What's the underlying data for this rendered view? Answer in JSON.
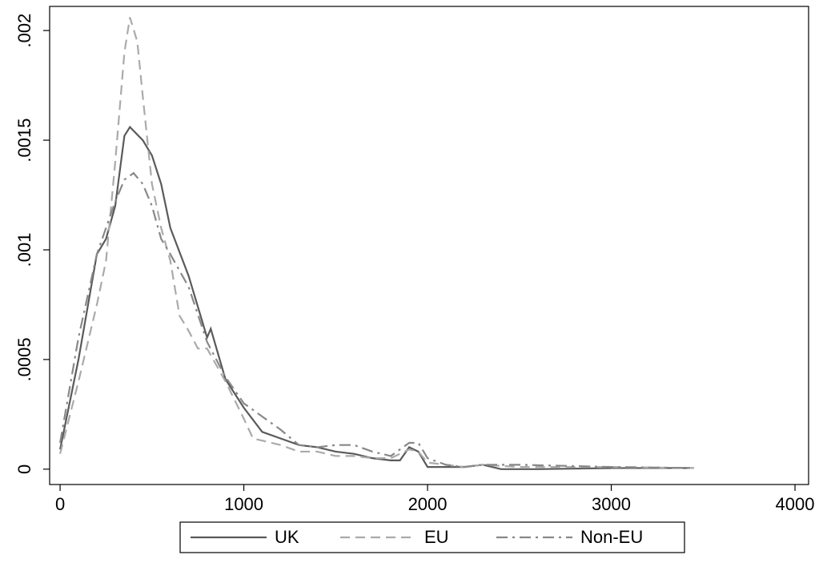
{
  "chart_data": {
    "type": "line",
    "xlim": [
      -57,
      4074
    ],
    "ylim": [
      -7e-05,
      0.00211
    ],
    "xticks": [
      0,
      1000,
      2000,
      3000,
      4000
    ],
    "yticks": [
      0,
      {
        "value": 0.0005,
        "label": ".0005"
      },
      {
        "value": 0.001,
        "label": ".001"
      },
      {
        "value": 0.0015,
        "label": ".0015"
      },
      {
        "value": 0.002,
        "label": ".002"
      }
    ],
    "grid": false,
    "legend": "bottom",
    "series": [
      {
        "name": "UK",
        "color": "#5a5a5a",
        "dash": "solid",
        "x": [
          0,
          100,
          200,
          250,
          300,
          350,
          380,
          450,
          500,
          550,
          600,
          700,
          800,
          820,
          900,
          1000,
          1100,
          1200,
          1300,
          1400,
          1500,
          1600,
          1700,
          1800,
          1850,
          1900,
          1950,
          2000,
          2100,
          2200,
          2300,
          2400,
          2600,
          3000,
          3450
        ],
        "values": [
          9e-05,
          0.0005,
          0.00098,
          0.00105,
          0.0012,
          0.00152,
          0.00156,
          0.0015,
          0.00143,
          0.0013,
          0.0011,
          0.00088,
          0.0006,
          0.00064,
          0.00041,
          0.00028,
          0.00017,
          0.00014,
          0.00011,
          0.0001,
          8e-05,
          7e-05,
          5e-05,
          4e-05,
          4e-05,
          0.0001,
          8e-05,
          1e-05,
          1e-05,
          1e-05,
          2e-05,
          0,
          0,
          5e-06,
          5e-06
        ]
      },
      {
        "name": "EU",
        "color": "#aaaaaa",
        "dash": "dashed",
        "x": [
          0,
          100,
          200,
          250,
          300,
          350,
          380,
          420,
          450,
          500,
          550,
          600,
          650,
          700,
          750,
          800,
          900,
          1000,
          1050,
          1100,
          1200,
          1300,
          1400,
          1500,
          1600,
          1700,
          1800,
          1900,
          1950,
          2000,
          2100,
          2200,
          2300,
          2500,
          3000,
          3450
        ],
        "values": [
          7e-05,
          0.0004,
          0.00075,
          0.00095,
          0.0014,
          0.0019,
          0.00206,
          0.00195,
          0.0017,
          0.0013,
          0.0011,
          0.00095,
          0.0007,
          0.00063,
          0.00055,
          0.00055,
          0.0004,
          0.00023,
          0.00014,
          0.00013,
          0.00011,
          8e-05,
          8e-05,
          6e-05,
          6e-05,
          5e-05,
          5e-05,
          9e-05,
          8e-05,
          3e-05,
          2e-05,
          1e-05,
          2e-05,
          1e-05,
          1e-05,
          5e-06
        ]
      },
      {
        "name": "Non-EU",
        "color": "#888888",
        "dash": "dashdot",
        "x": [
          0,
          100,
          200,
          300,
          350,
          400,
          450,
          500,
          550,
          600,
          700,
          800,
          900,
          1000,
          1100,
          1200,
          1300,
          1400,
          1500,
          1600,
          1700,
          1800,
          1900,
          1950,
          2000,
          2100,
          2200,
          2300,
          2500,
          3000,
          3450
        ],
        "values": [
          0.00012,
          0.0006,
          0.00098,
          0.00122,
          0.00132,
          0.00135,
          0.0013,
          0.0012,
          0.00105,
          0.00098,
          0.00083,
          0.00058,
          0.00042,
          0.0003,
          0.00024,
          0.00018,
          0.00011,
          0.0001,
          0.00011,
          0.00011,
          8e-05,
          6e-05,
          0.00012,
          0.00012,
          5e-05,
          2e-05,
          1e-05,
          2e-05,
          2e-05,
          1e-05,
          5e-06
        ]
      }
    ]
  }
}
